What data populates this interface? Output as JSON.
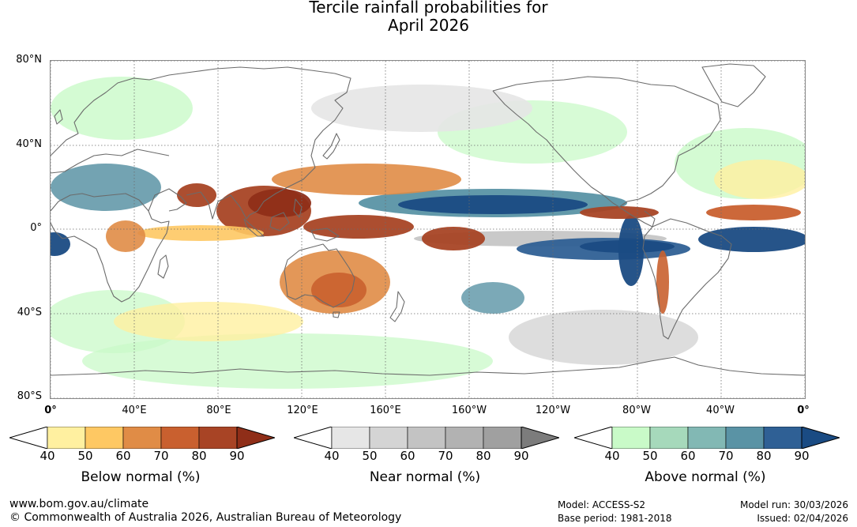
{
  "title": {
    "line1": "Tercile rainfall probabilities for",
    "line2": "April 2026"
  },
  "map": {
    "lat_labels": [
      "80°N",
      "40°N",
      "0°",
      "40°S",
      "80°S"
    ],
    "lon_labels": [
      "0°",
      "40°E",
      "80°E",
      "120°E",
      "160°E",
      "160°W",
      "120°W",
      "80°W",
      "40°W",
      "0°"
    ],
    "colors": {
      "below": [
        "#fff0a0",
        "#fec863",
        "#e08c46",
        "#c9602f",
        "#a84425",
        "#8f2e18"
      ],
      "near": [
        "#e6e6e6",
        "#d4d4d4",
        "#c3c3c3",
        "#b2b2b2",
        "#a0a0a0",
        "#7c7c7c"
      ],
      "above": [
        "#c9fac8",
        "#a6d9bb",
        "#82b8b4",
        "#5a93a5",
        "#2f6095",
        "#1a4b83"
      ],
      "coast": "#6b6b6b",
      "grid": "#6b6b6b"
    }
  },
  "colorbars": [
    {
      "name": "below",
      "ticks": [
        "40",
        "50",
        "60",
        "70",
        "80",
        "90"
      ],
      "title": "Below normal (%)"
    },
    {
      "name": "near",
      "ticks": [
        "40",
        "50",
        "60",
        "70",
        "80",
        "90"
      ],
      "title": "Near normal (%)"
    },
    {
      "name": "above",
      "ticks": [
        "40",
        "50",
        "60",
        "70",
        "80",
        "90"
      ],
      "title": "Above normal (%)"
    }
  ],
  "footer": {
    "website": "www.bom.gov.au/climate",
    "copyright": "© Commonwealth of Australia 2026, Australian Bureau of Meteorology",
    "model": "Model: ACCESS-S2",
    "base_period": "Base period: 1981-2018",
    "model_run": "Model run: 30/03/2026",
    "issued": "Issued: 02/04/2026"
  }
}
